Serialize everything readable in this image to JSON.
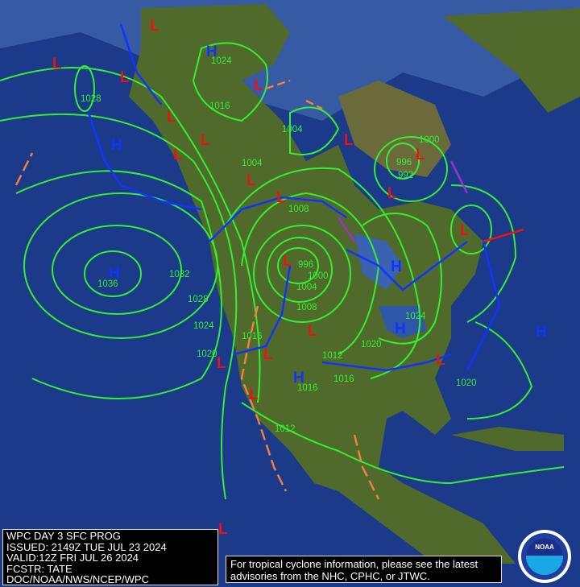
{
  "info_box": {
    "lines": [
      "WPC DAY 3 SFC PROG",
      "ISSUED: 2149Z TUE JUL 23 2024",
      "VALID:12Z FRI JUL 26 2024",
      "FCSTR: TATE",
      "DOC/NOAA/NWS/NCEP/WPC"
    ]
  },
  "notice": {
    "line1": "For tropical cyclone information, please see the latest",
    "line2": "advisories from the NHC, CPHC, or JTWC."
  },
  "logo": {
    "text": "NOAA"
  },
  "colors": {
    "ocean": "#1c3a8a",
    "land": "#4f6a2a",
    "isobar": "#33ee33",
    "high": "#1133ff",
    "low": "#ee1111",
    "cold_front": "#1133ff",
    "warm_front": "#ee1111",
    "trough": "#f08040",
    "occluded": "#9933cc"
  },
  "highs": [
    {
      "label": "H",
      "lon_lat_hint": "Bering"
    },
    {
      "label": "H",
      "lon_lat_hint": "Gulf of Alaska"
    },
    {
      "label": "H",
      "lon_lat_hint": "NE Pacific"
    },
    {
      "label": "H",
      "lon_lat_hint": "Hudson Bay"
    },
    {
      "label": "H",
      "lon_lat_hint": "Great Lakes"
    },
    {
      "label": "H",
      "lon_lat_hint": "W Atlantic"
    },
    {
      "label": "H",
      "lon_lat_hint": "Central Rockies"
    }
  ],
  "isobar_labels": [
    "1028",
    "1024",
    "1016",
    "1004",
    "1004",
    "1008",
    "1000",
    "996",
    "992",
    "996",
    "1000",
    "1004",
    "1008",
    "1012",
    "1016",
    "1016",
    "1020",
    "1024",
    "1032",
    "1036",
    "1028",
    "1024",
    "1020",
    "1016",
    "1012",
    "1020"
  ]
}
